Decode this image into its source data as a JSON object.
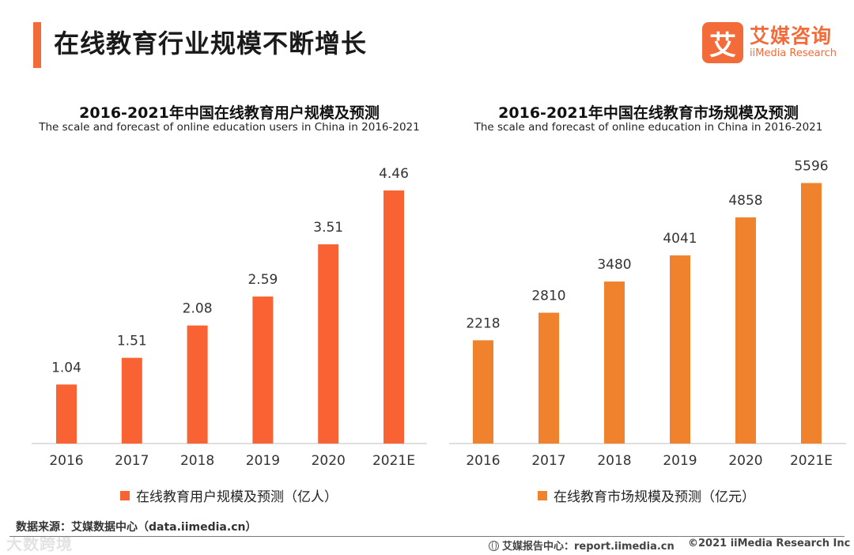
{
  "header": {
    "title": "在线教育行业规模不断增长",
    "logo_mark": "艾",
    "logo_cn": "艾媒咨询",
    "logo_en": "iiMedia Research"
  },
  "colors": {
    "accent": "#F26B38",
    "users_bar": "#F96232",
    "market_bar": "#F0822E"
  },
  "chart_data": [
    {
      "type": "bar",
      "title": "2016-2021年中国在线教育用户规模及预测",
      "subtitle": "The scale and forecast of online education users in China in 2016-2021",
      "categories": [
        "2016",
        "2017",
        "2018",
        "2019",
        "2020",
        "2021E"
      ],
      "values": [
        1.04,
        1.51,
        2.08,
        2.59,
        3.51,
        4.46
      ],
      "value_labels": [
        "1.04",
        "1.51",
        "2.08",
        "2.59",
        "3.51",
        "4.46"
      ],
      "legend": "在线教育用户规模及预测（亿人）",
      "ylim": [
        0,
        4.82
      ],
      "grid": false
    },
    {
      "type": "bar",
      "title": "2016-2021年中国在线教育市场规模及预测",
      "subtitle": "The scale and forecast of online education in China in 2016-2021",
      "categories": [
        "2016",
        "2017",
        "2018",
        "2019",
        "2020",
        "2021E"
      ],
      "values": [
        2218,
        2810,
        3480,
        4041,
        4858,
        5596
      ],
      "value_labels": [
        "2218",
        "2810",
        "3480",
        "4041",
        "4858",
        "5596"
      ],
      "legend": "在线教育市场规模及预测（亿元）",
      "ylim": [
        0,
        5876
      ],
      "grid": false
    }
  ],
  "source": "数据来源：艾媒数据中心（data.iimedia.cn）",
  "watermark": "大数跨境",
  "footer": {
    "report_center": "艾媒报告中心：report.iimedia.cn",
    "copyright": "©2021  iiMedia Research  Inc"
  }
}
